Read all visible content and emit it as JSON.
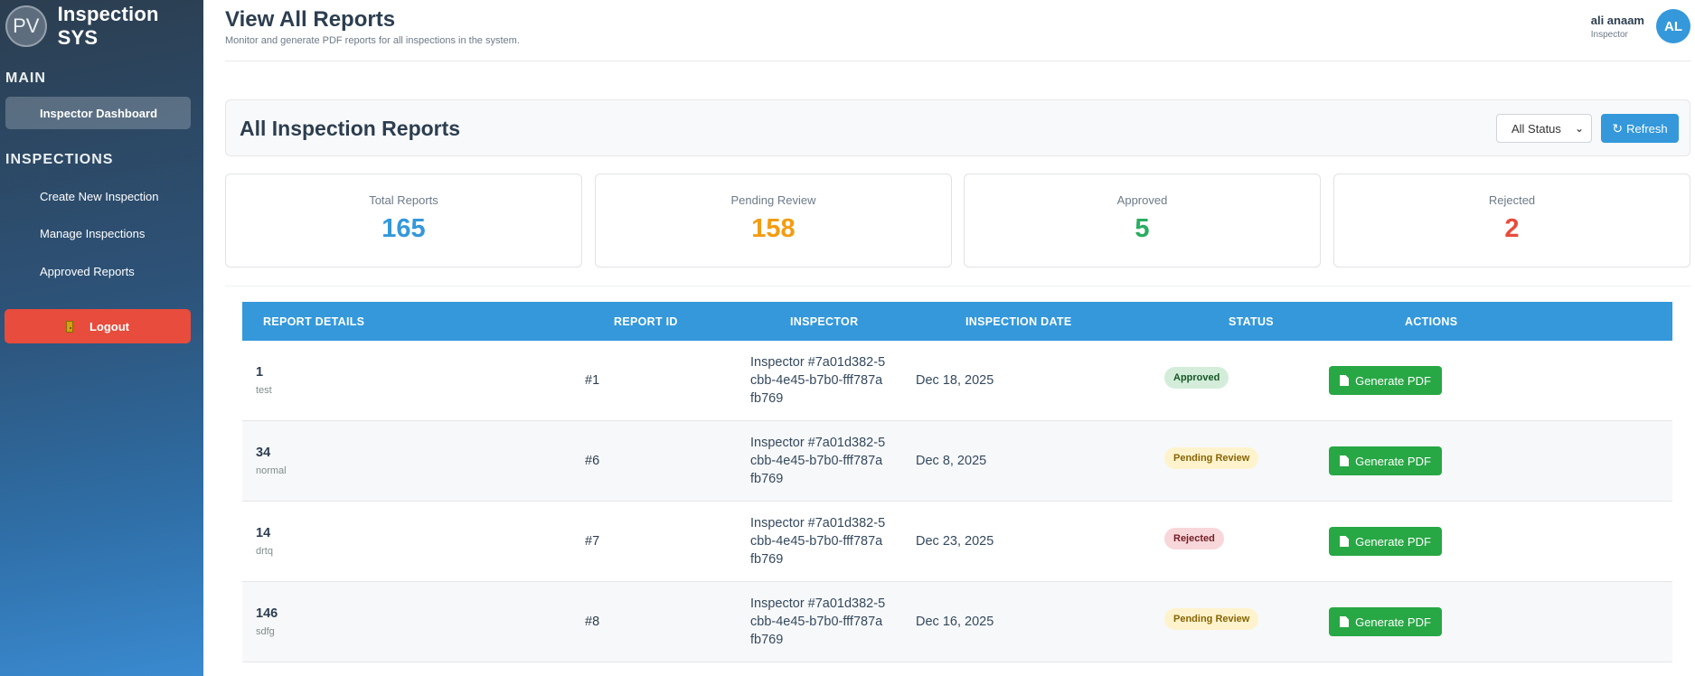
{
  "brand": {
    "avatar": "PV",
    "title": "Inspection SYS"
  },
  "sidebar": {
    "main_label": "MAIN",
    "dashboard": "Inspector Dashboard",
    "inspections_label": "INSPECTIONS",
    "items": [
      "Create New Inspection",
      "Manage Inspections",
      "Approved Reports"
    ],
    "logout": "Logout"
  },
  "header": {
    "title": "View All Reports",
    "subtitle": "Monitor and generate PDF reports for all inspections in the system.",
    "user_name": "ali anaam",
    "user_role": "Inspector",
    "user_initials": "AL"
  },
  "reports": {
    "title": "All Inspection Reports",
    "filter_value": "All Status",
    "refresh_label": "Refresh"
  },
  "stats": [
    {
      "label": "Total Reports",
      "value": "165",
      "color": "#3498db"
    },
    {
      "label": "Pending Review",
      "value": "158",
      "color": "#f39c12"
    },
    {
      "label": "Approved",
      "value": "5",
      "color": "#27ae60"
    },
    {
      "label": "Rejected",
      "value": "2",
      "color": "#e74c3c"
    }
  ],
  "table": {
    "headers": [
      "REPORT DETAILS",
      "REPORT ID",
      "INSPECTOR",
      "INSPECTION DATE",
      "STATUS",
      "ACTIONS"
    ],
    "rows": [
      {
        "title": "1",
        "sub": "test",
        "id": "#1",
        "inspector": "Inspector #7a01d382-5cbb-4e45-b7b0-fff787afb769",
        "date": "Dec 18, 2025",
        "status": "Approved",
        "action": "Generate PDF"
      },
      {
        "title": "34",
        "sub": "normal",
        "id": "#6",
        "inspector": "Inspector #7a01d382-5cbb-4e45-b7b0-fff787afb769",
        "date": "Dec 8, 2025",
        "status": "Pending Review",
        "action": "Generate PDF"
      },
      {
        "title": "14",
        "sub": "drtq",
        "id": "#7",
        "inspector": "Inspector #7a01d382-5cbb-4e45-b7b0-fff787afb769",
        "date": "Dec 23, 2025",
        "status": "Rejected",
        "action": "Generate PDF"
      },
      {
        "title": "146",
        "sub": "sdfg",
        "id": "#8",
        "inspector": "Inspector #7a01d382-5cbb-4e45-b7b0-fff787afb769",
        "date": "Dec 16, 2025",
        "status": "Pending Review",
        "action": "Generate PDF"
      }
    ]
  },
  "icons": {
    "refresh": "refresh-icon",
    "pdf": "file-pdf-icon",
    "logout": "door-icon"
  }
}
